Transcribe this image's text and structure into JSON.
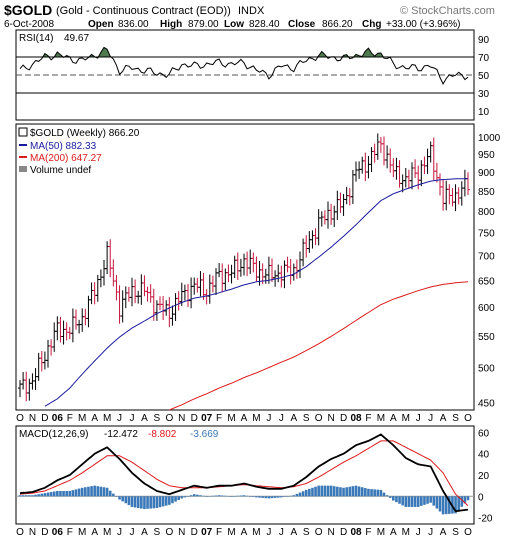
{
  "header": {
    "symbol": "$GOLD",
    "name": "(Gold - Continuous Contract (EOD))",
    "exchange": "INDX",
    "watermark": "© StockCharts.com",
    "date": "6-Oct-2008",
    "open_label": "Open",
    "open": "836.00",
    "high_label": "High",
    "high": "879.00",
    "low_label": "Low",
    "low": "828.40",
    "close_label": "Close",
    "close": "866.20",
    "chg_label": "Chg",
    "chg": "+33.00 (+3.96%)"
  },
  "rsi": {
    "label": "RSI(14)",
    "value": "49.67",
    "ticks": [
      10,
      30,
      50,
      70,
      90
    ],
    "range": [
      0,
      100
    ],
    "overbought": 70,
    "oversold": 30,
    "center": 50,
    "fill_color": "#4f7a4f"
  },
  "price": {
    "legend": [
      {
        "text": "$GOLD (Weekly) 866.20",
        "color": "#000000"
      },
      {
        "text": "MA(50) 882.33",
        "color": "#1a1aa0"
      },
      {
        "text": "MA(200) 647.27",
        "color": "#dd1a1a"
      },
      {
        "text": "Volume undef",
        "color": "#000000"
      }
    ],
    "ticks": [
      450,
      500,
      550,
      600,
      650,
      700,
      750,
      800,
      850,
      900,
      950,
      1000
    ],
    "log_scale": true,
    "range": [
      440,
      1040
    ],
    "up_color": "#000000",
    "down_color": "#c8143c"
  },
  "macd": {
    "label": "MACD(12,26,9)",
    "macd_value": "-12.472",
    "signal_value": "-8.802",
    "hist_value": "-3.669",
    "signal_color": "#dd1a1a",
    "hist_color": "#3a78b8",
    "ticks": [
      -20,
      0,
      20,
      40,
      60
    ],
    "range": [
      -26,
      66
    ]
  },
  "x_axis": {
    "labels": [
      "O",
      "N",
      "D",
      "06",
      "F",
      "M",
      "A",
      "M",
      "J",
      "J",
      "A",
      "S",
      "O",
      "N",
      "D",
      "07",
      "F",
      "M",
      "A",
      "M",
      "J",
      "J",
      "A",
      "S",
      "O",
      "N",
      "D",
      "08",
      "F",
      "M",
      "A",
      "M",
      "J",
      "J",
      "A",
      "S",
      "O"
    ],
    "bold": [
      "06",
      "07",
      "08"
    ]
  },
  "chart_data": [
    {
      "type": "line",
      "title": "RSI(14) 49.67",
      "x": [
        "2005-10",
        "2005-11",
        "2005-12",
        "2006-01",
        "2006-02",
        "2006-03",
        "2006-04",
        "2006-05",
        "2006-06",
        "2006-07",
        "2006-08",
        "2006-09",
        "2006-10",
        "2006-11",
        "2006-12",
        "2007-01",
        "2007-02",
        "2007-03",
        "2007-04",
        "2007-05",
        "2007-06",
        "2007-07",
        "2007-08",
        "2007-09",
        "2007-10",
        "2007-11",
        "2007-12",
        "2008-01",
        "2008-02",
        "2008-03",
        "2008-04",
        "2008-05",
        "2008-06",
        "2008-07",
        "2008-08",
        "2008-09",
        "2008-10"
      ],
      "series": [
        {
          "values": [
            55,
            62,
            70,
            73,
            68,
            66,
            72,
            78,
            55,
            58,
            55,
            52,
            50,
            62,
            60,
            62,
            64,
            62,
            64,
            55,
            50,
            60,
            58,
            66,
            72,
            70,
            68,
            72,
            75,
            74,
            62,
            58,
            58,
            60,
            45,
            50,
            49.67
          ]
        }
      ],
      "ylim": [
        0,
        100
      ]
    },
    {
      "type": "line",
      "title": "$GOLD (Weekly) 866.20",
      "x": [
        "2005-10",
        "2005-11",
        "2005-12",
        "2006-01",
        "2006-02",
        "2006-03",
        "2006-04",
        "2006-05",
        "2006-06",
        "2006-07",
        "2006-08",
        "2006-09",
        "2006-10",
        "2006-11",
        "2006-12",
        "2007-01",
        "2007-02",
        "2007-03",
        "2007-04",
        "2007-05",
        "2007-06",
        "2007-07",
        "2007-08",
        "2007-09",
        "2007-10",
        "2007-11",
        "2007-12",
        "2008-01",
        "2008-02",
        "2008-03",
        "2008-04",
        "2008-05",
        "2008-06",
        "2008-07",
        "2008-08",
        "2008-09",
        "2008-10"
      ],
      "series": [
        {
          "name": "$GOLD (Weekly)",
          "values": [
            470,
            480,
            520,
            560,
            560,
            580,
            630,
            700,
            600,
            630,
            630,
            600,
            590,
            620,
            640,
            630,
            660,
            665,
            690,
            670,
            660,
            665,
            670,
            720,
            770,
            800,
            820,
            900,
            930,
            980,
            900,
            880,
            900,
            950,
            830,
            840,
            866.2
          ]
        },
        {
          "name": "MA(50)",
          "values": [
            null,
            null,
            445,
            455,
            470,
            490,
            510,
            530,
            548,
            563,
            575,
            588,
            598,
            608,
            616,
            620,
            626,
            633,
            641,
            647,
            650,
            655,
            662,
            677,
            697,
            718,
            742,
            768,
            797,
            826,
            843,
            855,
            866,
            876,
            880,
            882,
            882.33
          ]
        },
        {
          "name": "MA(200)",
          "values": [
            null,
            null,
            null,
            null,
            null,
            null,
            null,
            null,
            null,
            null,
            null,
            null,
            440,
            447,
            455,
            462,
            470,
            477,
            485,
            492,
            500,
            508,
            516,
            526,
            537,
            549,
            562,
            576,
            590,
            604,
            614,
            622,
            630,
            637,
            642,
            645,
            647.27
          ]
        }
      ],
      "ylim": [
        440,
        1040
      ]
    },
    {
      "type": "line",
      "title": "MACD(12,26,9) -12.472, -8.802, -3.669",
      "x": [
        "2005-10",
        "2005-11",
        "2005-12",
        "2006-01",
        "2006-02",
        "2006-03",
        "2006-04",
        "2006-05",
        "2006-06",
        "2006-07",
        "2006-08",
        "2006-09",
        "2006-10",
        "2006-11",
        "2006-12",
        "2007-01",
        "2007-02",
        "2007-03",
        "2007-04",
        "2007-05",
        "2007-06",
        "2007-07",
        "2007-08",
        "2007-09",
        "2007-10",
        "2007-11",
        "2007-12",
        "2008-01",
        "2008-02",
        "2008-03",
        "2008-04",
        "2008-05",
        "2008-06",
        "2008-07",
        "2008-08",
        "2008-09",
        "2008-10"
      ],
      "series": [
        {
          "name": "MACD",
          "values": [
            3,
            4,
            8,
            15,
            20,
            30,
            40,
            46,
            35,
            22,
            12,
            5,
            2,
            6,
            10,
            8,
            10,
            10,
            12,
            9,
            7,
            7,
            10,
            18,
            28,
            35,
            40,
            48,
            52,
            58,
            48,
            36,
            30,
            28,
            5,
            -14,
            -12.472
          ]
        },
        {
          "name": "Signal",
          "values": [
            2,
            3,
            5,
            10,
            15,
            22,
            30,
            38,
            38,
            32,
            24,
            16,
            10,
            8,
            8,
            8,
            9,
            10,
            11,
            10,
            9,
            8,
            9,
            12,
            18,
            25,
            32,
            38,
            45,
            52,
            52,
            46,
            40,
            34,
            22,
            2,
            -8.802
          ]
        },
        {
          "name": "Histogram",
          "values": [
            1,
            1,
            3,
            5,
            5,
            8,
            10,
            8,
            -3,
            -10,
            -12,
            -11,
            -8,
            -2,
            2,
            0,
            1,
            0,
            1,
            -1,
            -2,
            -1,
            1,
            6,
            10,
            10,
            8,
            10,
            7,
            6,
            -4,
            -10,
            -10,
            -6,
            -17,
            -16,
            -3.669
          ]
        }
      ],
      "ylim": [
        -26,
        66
      ]
    }
  ]
}
